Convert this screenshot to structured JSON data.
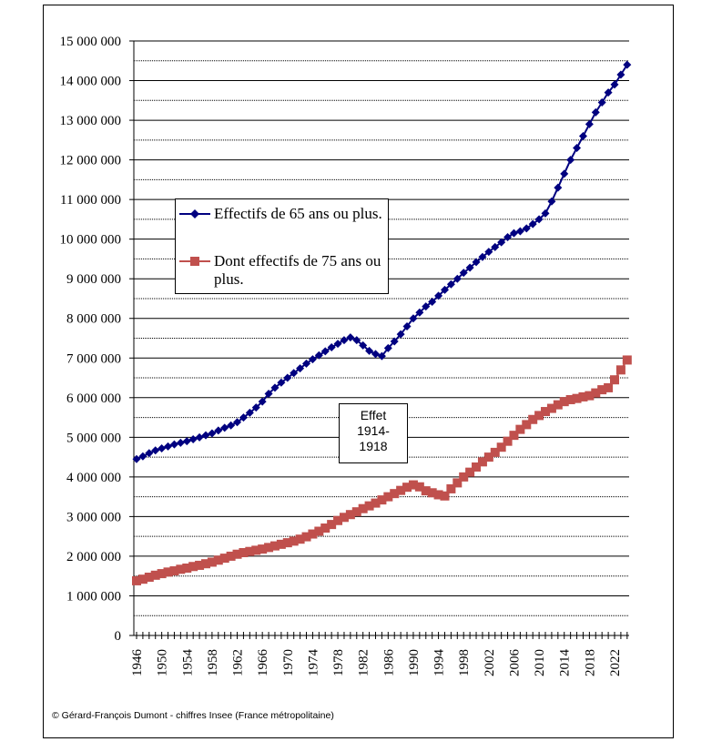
{
  "chart_data": {
    "type": "line",
    "title": "",
    "xlabel": "",
    "ylabel": "",
    "ylim": [
      0,
      15000000
    ],
    "ytick_labels": [
      "0",
      "1 000 000",
      "2 000 000",
      "3 000 000",
      "4 000 000",
      "5 000 000",
      "6 000 000",
      "7 000 000",
      "8 000 000",
      "9 000 000",
      "10 000 000",
      "11 000 000",
      "12 000 000",
      "13 000 000",
      "14 000 000",
      "15 000 000"
    ],
    "xlim": [
      1946,
      2024
    ],
    "xtick_labels": [
      "1946",
      "1950",
      "1954",
      "1958",
      "1962",
      "1966",
      "1970",
      "1974",
      "1978",
      "1982",
      "1986",
      "1990",
      "1994",
      "1998",
      "2002",
      "2006",
      "2010",
      "2014",
      "2018",
      "2022"
    ],
    "grid": true,
    "legend_position": "upper-left",
    "series": [
      {
        "name": "Effectifs de 65 ans ou plus.",
        "color": "#000080",
        "marker": "diamond",
        "values_millions": [
          4.45,
          4.52,
          4.6,
          4.67,
          4.72,
          4.77,
          4.82,
          4.86,
          4.9,
          4.95,
          5.0,
          5.05,
          5.1,
          5.17,
          5.24,
          5.3,
          5.38,
          5.5,
          5.62,
          5.75,
          5.9,
          6.1,
          6.25,
          6.38,
          6.5,
          6.62,
          6.74,
          6.86,
          6.97,
          7.07,
          7.17,
          7.27,
          7.36,
          7.45,
          7.52,
          7.45,
          7.32,
          7.18,
          7.1,
          7.05,
          7.25,
          7.42,
          7.6,
          7.8,
          8.0,
          8.15,
          8.3,
          8.42,
          8.57,
          8.72,
          8.86,
          9.0,
          9.15,
          9.28,
          9.42,
          9.55,
          9.68,
          9.8,
          9.92,
          10.05,
          10.15,
          10.2,
          10.27,
          10.38,
          10.5,
          10.65,
          10.95,
          11.3,
          11.65,
          12.0,
          12.3,
          12.6,
          12.9,
          13.2,
          13.45,
          13.7,
          13.9,
          14.15,
          14.4
        ]
      },
      {
        "name": "Dont effectifs de 75 ans ou plus.",
        "color": "#C0504D",
        "marker": "square",
        "values_millions": [
          1.38,
          1.42,
          1.47,
          1.52,
          1.56,
          1.6,
          1.63,
          1.67,
          1.7,
          1.74,
          1.77,
          1.81,
          1.85,
          1.9,
          1.95,
          2.0,
          2.05,
          2.09,
          2.12,
          2.15,
          2.18,
          2.22,
          2.26,
          2.3,
          2.34,
          2.38,
          2.43,
          2.49,
          2.56,
          2.63,
          2.71,
          2.8,
          2.9,
          2.98,
          3.05,
          3.12,
          3.2,
          3.27,
          3.34,
          3.42,
          3.5,
          3.58,
          3.66,
          3.74,
          3.8,
          3.75,
          3.65,
          3.6,
          3.55,
          3.52,
          3.7,
          3.85,
          4.0,
          4.12,
          4.25,
          4.38,
          4.5,
          4.62,
          4.75,
          4.9,
          5.05,
          5.2,
          5.32,
          5.45,
          5.55,
          5.65,
          5.73,
          5.82,
          5.9,
          5.95,
          5.98,
          6.02,
          6.05,
          6.12,
          6.2,
          6.25,
          6.45,
          6.7,
          6.95
        ]
      }
    ],
    "annotation": {
      "line1": "Effet",
      "line2": "1914-",
      "line3": "1918"
    },
    "credit": "© Gérard-François Dumont - chiffres Insee (France métropolitaine)"
  }
}
